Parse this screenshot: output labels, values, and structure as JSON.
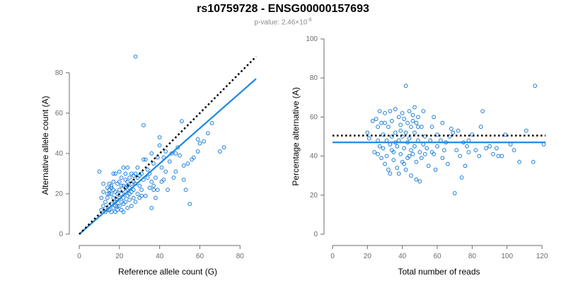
{
  "header": {
    "title": "rs10759728 - ENSG00000157693",
    "pvalue_prefix": "p-value: 2.46×10",
    "pvalue_exponent": "-8"
  },
  "colors": {
    "points": "#1f7fd6",
    "fit_line": "#1e88e5",
    "reference_line": "#000000",
    "axis": "#6b6b6b"
  },
  "chart_data": [
    {
      "type": "scatter",
      "title": "",
      "xlabel": "Reference allele count (G)",
      "ylabel": "Alternative allele count (A)",
      "xlim": [
        0,
        88
      ],
      "ylim": [
        0,
        88
      ],
      "xticks": [
        0,
        20,
        40,
        60,
        80
      ],
      "yticks": [
        0,
        20,
        40,
        60,
        80
      ],
      "grid": false,
      "points": [
        [
          10,
          31
        ],
        [
          11,
          12
        ],
        [
          11,
          18
        ],
        [
          12,
          21
        ],
        [
          12,
          14
        ],
        [
          13,
          11
        ],
        [
          13,
          16
        ],
        [
          14,
          18
        ],
        [
          14,
          12
        ],
        [
          14,
          20
        ],
        [
          15,
          25
        ],
        [
          15,
          22
        ],
        [
          15,
          14
        ],
        [
          15,
          12
        ],
        [
          16,
          24
        ],
        [
          16,
          20
        ],
        [
          16,
          11
        ],
        [
          16,
          15
        ],
        [
          17,
          18
        ],
        [
          17,
          13
        ],
        [
          17,
          26
        ],
        [
          17,
          22
        ],
        [
          18,
          30
        ],
        [
          18,
          16
        ],
        [
          18,
          11
        ],
        [
          18,
          14
        ],
        [
          19,
          25
        ],
        [
          19,
          20
        ],
        [
          19,
          12
        ],
        [
          19,
          17
        ],
        [
          20,
          22
        ],
        [
          20,
          26
        ],
        [
          20,
          14
        ],
        [
          20,
          18
        ],
        [
          21,
          12
        ],
        [
          21,
          20
        ],
        [
          21,
          28
        ],
        [
          21,
          24
        ],
        [
          22,
          33
        ],
        [
          22,
          18
        ],
        [
          22,
          15
        ],
        [
          22,
          11
        ],
        [
          23,
          21
        ],
        [
          23,
          27
        ],
        [
          23,
          16
        ],
        [
          23,
          30
        ],
        [
          24,
          24
        ],
        [
          24,
          19
        ],
        [
          24,
          13
        ],
        [
          25,
          23
        ],
        [
          25,
          28
        ],
        [
          25,
          17
        ],
        [
          26,
          21
        ],
        [
          26,
          14
        ],
        [
          26,
          30
        ],
        [
          27,
          26
        ],
        [
          27,
          18
        ],
        [
          27,
          22
        ],
        [
          28,
          88
        ],
        [
          28,
          25
        ],
        [
          28,
          16
        ],
        [
          29,
          20
        ],
        [
          29,
          28
        ],
        [
          30,
          24
        ],
        [
          30,
          18
        ],
        [
          31,
          22
        ],
        [
          31,
          30
        ],
        [
          32,
          37
        ],
        [
          32,
          54
        ],
        [
          32,
          27
        ],
        [
          33,
          19
        ],
        [
          34,
          28
        ],
        [
          34,
          32
        ],
        [
          35,
          23
        ],
        [
          36,
          40
        ],
        [
          36,
          13
        ],
        [
          37,
          24
        ],
        [
          37,
          35
        ],
        [
          38,
          18
        ],
        [
          38,
          28
        ],
        [
          39,
          38
        ],
        [
          39,
          22
        ],
        [
          40,
          44
        ],
        [
          40,
          48
        ],
        [
          41,
          33
        ],
        [
          42,
          27
        ],
        [
          42,
          38
        ],
        [
          43,
          31
        ],
        [
          44,
          22
        ],
        [
          45,
          36
        ],
        [
          46,
          40
        ],
        [
          47,
          28
        ],
        [
          48,
          40
        ],
        [
          49,
          43
        ],
        [
          50,
          39
        ],
        [
          51,
          56
        ],
        [
          52,
          34
        ],
        [
          53,
          22
        ],
        [
          54,
          35
        ],
        [
          55,
          15
        ],
        [
          56,
          37
        ],
        [
          57,
          38
        ],
        [
          59,
          41
        ],
        [
          59,
          47
        ],
        [
          62,
          46
        ],
        [
          64,
          50
        ],
        [
          66,
          55
        ],
        [
          70,
          41
        ],
        [
          72,
          43
        ],
        [
          15,
          20
        ],
        [
          16,
          23
        ],
        [
          17,
          30
        ],
        [
          18,
          21
        ],
        [
          20,
          31
        ],
        [
          21,
          16
        ],
        [
          23,
          23
        ],
        [
          24,
          33
        ],
        [
          25,
          20
        ],
        [
          26,
          25
        ],
        [
          27,
          29
        ],
        [
          29,
          33
        ],
        [
          30,
          29
        ],
        [
          33,
          37
        ],
        [
          35,
          30
        ],
        [
          37,
          22
        ],
        [
          41,
          26
        ],
        [
          43,
          41
        ],
        [
          48,
          31
        ],
        [
          52,
          27
        ],
        [
          60,
          45
        ],
        [
          12,
          25
        ],
        [
          14,
          23
        ],
        [
          19,
          14
        ],
        [
          22,
          24
        ],
        [
          24,
          26
        ],
        [
          28,
          30
        ],
        [
          31,
          19
        ],
        [
          36,
          26
        ]
      ],
      "fit_line": [
        [
          0,
          0
        ],
        [
          88,
          77
        ]
      ],
      "reference_line": [
        [
          0,
          0
        ],
        [
          88,
          88
        ]
      ]
    },
    {
      "type": "scatter",
      "title": "",
      "xlabel": "Total number of reads",
      "ylabel": "Percentage alternative (A)",
      "xlim": [
        0,
        122
      ],
      "ylim": [
        0,
        100
      ],
      "xticks": [
        0,
        20,
        40,
        60,
        80,
        100,
        120
      ],
      "yticks": [
        0,
        20,
        40,
        60,
        80,
        100
      ],
      "grid": false,
      "points": [
        [
          20,
          52
        ],
        [
          21,
          49
        ],
        [
          23,
          58
        ],
        [
          24,
          42
        ],
        [
          25,
          59
        ],
        [
          26,
          55
        ],
        [
          26,
          48
        ],
        [
          27,
          63
        ],
        [
          27,
          45
        ],
        [
          28,
          57
        ],
        [
          28,
          39
        ],
        [
          29,
          51
        ],
        [
          29,
          44
        ],
        [
          30,
          62
        ],
        [
          30,
          36
        ],
        [
          31,
          48
        ],
        [
          31,
          40
        ],
        [
          32,
          55
        ],
        [
          32,
          33
        ],
        [
          33,
          63
        ],
        [
          33,
          46
        ],
        [
          33,
          31
        ],
        [
          34,
          58
        ],
        [
          34,
          50
        ],
        [
          35,
          42
        ],
        [
          35,
          38
        ],
        [
          36,
          64
        ],
        [
          36,
          52
        ],
        [
          37,
          45
        ],
        [
          37,
          34
        ],
        [
          38,
          60
        ],
        [
          38,
          48
        ],
        [
          38,
          31
        ],
        [
          39,
          56
        ],
        [
          39,
          41
        ],
        [
          40,
          62
        ],
        [
          40,
          50
        ],
        [
          40,
          37
        ],
        [
          41,
          59
        ],
        [
          41,
          44
        ],
        [
          42,
          76
        ],
        [
          42,
          52
        ],
        [
          42,
          33
        ],
        [
          43,
          57
        ],
        [
          43,
          47
        ],
        [
          43,
          39
        ],
        [
          44,
          63
        ],
        [
          44,
          49
        ],
        [
          45,
          55
        ],
        [
          45,
          43
        ],
        [
          45,
          30
        ],
        [
          46,
          41
        ],
        [
          46,
          61
        ],
        [
          47,
          65
        ],
        [
          47,
          52
        ],
        [
          47,
          45
        ],
        [
          48,
          57
        ],
        [
          48,
          37
        ],
        [
          48,
          28
        ],
        [
          49,
          60
        ],
        [
          49,
          48
        ],
        [
          50,
          27
        ],
        [
          50,
          42
        ],
        [
          51,
          55
        ],
        [
          51,
          39
        ],
        [
          52,
          46
        ],
        [
          52,
          63
        ],
        [
          53,
          50
        ],
        [
          54,
          44
        ],
        [
          55,
          35
        ],
        [
          56,
          48
        ],
        [
          57,
          55
        ],
        [
          58,
          60
        ],
        [
          58,
          41
        ],
        [
          59,
          33
        ],
        [
          60,
          51
        ],
        [
          60,
          45
        ],
        [
          62,
          48
        ],
        [
          63,
          39
        ],
        [
          64,
          43
        ],
        [
          65,
          47
        ],
        [
          66,
          36
        ],
        [
          67,
          50
        ],
        [
          68,
          54
        ],
        [
          70,
          21
        ],
        [
          71,
          43
        ],
        [
          72,
          53
        ],
        [
          73,
          40
        ],
        [
          74,
          29
        ],
        [
          75,
          47
        ],
        [
          76,
          35
        ],
        [
          77,
          45
        ],
        [
          78,
          42
        ],
        [
          80,
          51
        ],
        [
          82,
          43
        ],
        [
          84,
          40
        ],
        [
          86,
          63
        ],
        [
          88,
          44
        ],
        [
          90,
          45
        ],
        [
          92,
          41
        ],
        [
          95,
          40
        ],
        [
          97,
          40
        ],
        [
          99,
          51
        ],
        [
          102,
          46
        ],
        [
          104,
          43
        ],
        [
          107,
          37
        ],
        [
          111,
          53
        ],
        [
          115,
          37
        ],
        [
          116,
          76
        ],
        [
          121,
          46
        ],
        [
          26,
          41
        ],
        [
          30,
          57
        ],
        [
          34,
          43
        ],
        [
          36,
          47
        ],
        [
          39,
          53
        ],
        [
          41,
          36
        ],
        [
          44,
          40
        ],
        [
          46,
          58
        ],
        [
          49,
          55
        ],
        [
          53,
          41
        ],
        [
          57,
          42
        ],
        [
          63,
          57
        ],
        [
          69,
          52
        ],
        [
          78,
          48
        ],
        [
          85,
          55
        ],
        [
          94,
          44
        ]
      ],
      "fit_line": [
        [
          0,
          47
        ],
        [
          122,
          47
        ]
      ],
      "reference_line": [
        [
          0,
          50.5
        ],
        [
          122,
          50.5
        ]
      ]
    }
  ]
}
